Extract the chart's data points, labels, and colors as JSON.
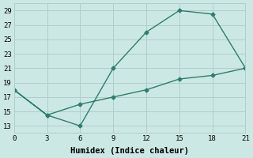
{
  "line_x": [
    0,
    3,
    6,
    9,
    12,
    15,
    18,
    21,
    21,
    18,
    15,
    12,
    9,
    6,
    3,
    0
  ],
  "line_y": [
    18,
    14.5,
    13,
    21,
    26,
    29,
    28.5,
    21,
    21,
    20,
    19.5,
    18,
    17,
    16,
    14.5,
    18
  ],
  "line_color": "#2e7d6e",
  "bg_color": "#cce8e4",
  "grid_color": "#b0cfc9",
  "xlabel": "Humidex (Indice chaleur)",
  "xlim": [
    0,
    21
  ],
  "ylim": [
    12,
    30
  ],
  "xticks": [
    0,
    3,
    6,
    9,
    12,
    15,
    18,
    21
  ],
  "yticks": [
    13,
    15,
    17,
    19,
    21,
    23,
    25,
    27,
    29
  ],
  "tick_fontsize": 6.5,
  "xlabel_fontsize": 7.5,
  "marker": "D",
  "marker_size": 2.5,
  "line_width": 1.0
}
